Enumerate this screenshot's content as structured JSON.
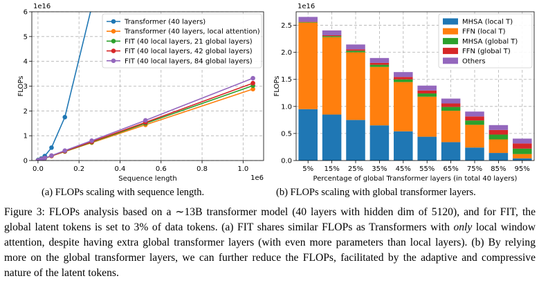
{
  "left_caption": "(a) FLOPs scaling with sequence length.",
  "right_caption": "(b) FLOPs scaling with global transformer layers.",
  "figure_caption": {
    "part1": "Figure 3: FLOPs analysis based on a ∼13B transformer model (40 layers with hidden dim of 5120), and for FIT, the global latent tokens is set to 3% of data tokens. (a) FIT shares similar FLOPs as Transformers with ",
    "emph": "only",
    "part2": " local window attention, despite having extra global transformer layers (with even more parameters than local layers). (b) By relying more on the global transformer layers, we can further reduce the FLOPs, facilitated by the adaptive and compressive nature of the latent tokens."
  },
  "chart_data": [
    {
      "type": "line",
      "ylabel": "FLOPs",
      "xlabel": "Sequence length",
      "x_offset_label": "1e6",
      "y_offset_label": "1e16",
      "xlim": [
        -0.03,
        1.1
      ],
      "ylim": [
        0,
        6
      ],
      "x_ticks": [
        0.0,
        0.2,
        0.4,
        0.6,
        0.8,
        1.0
      ],
      "x_tick_labels": [
        "0.0",
        "0.2",
        "0.4",
        "0.6",
        "0.8",
        "1.0"
      ],
      "y_ticks": [
        0,
        1,
        2,
        3,
        4,
        5,
        6
      ],
      "y_tick_labels": [
        "0",
        "1",
        "2",
        "3",
        "4",
        "5",
        "6"
      ],
      "grid": true,
      "legend_position": "top-right",
      "series": [
        {
          "name": "Transformer (40 layers)",
          "color": "#1f77b4",
          "x": [
            0.0,
            0.016,
            0.033,
            0.066,
            0.131,
            0.262
          ],
          "y": [
            0.02,
            0.08,
            0.18,
            0.52,
            1.75,
            6.2
          ]
        },
        {
          "name": "Transformer (40 layers, local attention)",
          "color": "#ff7f0e",
          "x": [
            0.0,
            0.016,
            0.033,
            0.066,
            0.131,
            0.262,
            0.524,
            1.048
          ],
          "y": [
            0.0,
            0.05,
            0.09,
            0.18,
            0.36,
            0.72,
            1.44,
            2.88
          ]
        },
        {
          "name": "FIT (40 local layers, 21 global layers)",
          "color": "#2ca02c",
          "x": [
            0.0,
            0.016,
            0.033,
            0.066,
            0.131,
            0.262,
            0.524,
            1.048
          ],
          "y": [
            0.0,
            0.05,
            0.09,
            0.19,
            0.37,
            0.74,
            1.5,
            3.02
          ]
        },
        {
          "name": "FIT (40 local layers, 42 global layers)",
          "color": "#d62728",
          "x": [
            0.0,
            0.016,
            0.033,
            0.066,
            0.131,
            0.262,
            0.524,
            1.048
          ],
          "y": [
            0.0,
            0.05,
            0.1,
            0.19,
            0.38,
            0.76,
            1.54,
            3.12
          ]
        },
        {
          "name": "FIT (40 local layers, 84 global layers)",
          "color": "#9467bd",
          "x": [
            0.0,
            0.016,
            0.033,
            0.066,
            0.131,
            0.262,
            0.524,
            1.048
          ],
          "y": [
            0.0,
            0.05,
            0.1,
            0.2,
            0.4,
            0.8,
            1.62,
            3.32
          ]
        }
      ]
    },
    {
      "type": "bar",
      "stacked": true,
      "ylabel": "FLOPs",
      "xlabel": "Percentage of global Transformer layers (in total 40 layers)",
      "y_offset_label": "1e16",
      "ylim": [
        0,
        2.75
      ],
      "y_ticks": [
        0.0,
        0.5,
        1.0,
        1.5,
        2.0,
        2.5
      ],
      "y_tick_labels": [
        "0.0",
        "0.5",
        "1.0",
        "1.5",
        "2.0",
        "2.5"
      ],
      "grid": true,
      "legend_position": "top-right",
      "categories": [
        "5%",
        "15%",
        "25%",
        "35%",
        "45%",
        "55%",
        "65%",
        "75%",
        "85%",
        "95%"
      ],
      "series": [
        {
          "name": "MHSA (local T)",
          "color": "#1f77b4",
          "values": [
            0.95,
            0.85,
            0.75,
            0.65,
            0.54,
            0.44,
            0.34,
            0.24,
            0.14,
            0.04
          ]
        },
        {
          "name": "FFN (local T)",
          "color": "#ff7f0e",
          "values": [
            1.6,
            1.43,
            1.25,
            1.08,
            0.91,
            0.74,
            0.58,
            0.42,
            0.25,
            0.08
          ]
        },
        {
          "name": "MHSA (global T)",
          "color": "#2ca02c",
          "values": [
            0.01,
            0.02,
            0.03,
            0.04,
            0.05,
            0.06,
            0.07,
            0.08,
            0.09,
            0.1
          ]
        },
        {
          "name": "FFN (global T)",
          "color": "#d62728",
          "values": [
            0.005,
            0.015,
            0.025,
            0.035,
            0.045,
            0.055,
            0.065,
            0.075,
            0.085,
            0.095
          ]
        },
        {
          "name": "Others",
          "color": "#9467bd",
          "values": [
            0.09,
            0.09,
            0.09,
            0.09,
            0.09,
            0.09,
            0.09,
            0.09,
            0.09,
            0.09
          ]
        }
      ]
    }
  ]
}
